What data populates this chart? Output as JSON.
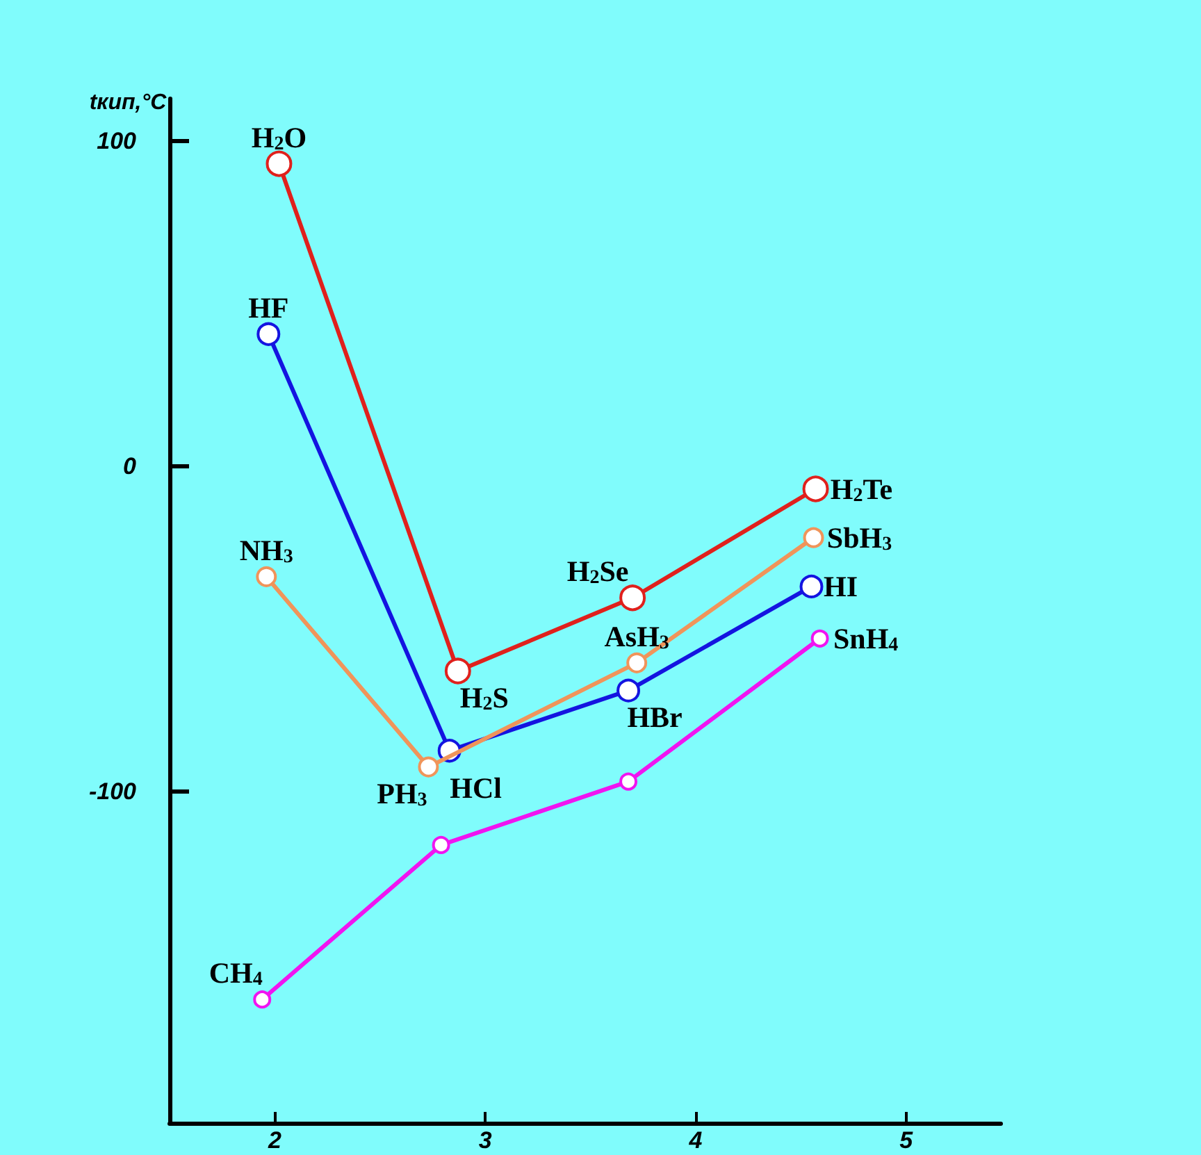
{
  "chart_data": {
    "type": "line",
    "ylabel": "tкип,°C",
    "xlim": [
      1.5,
      5.45
    ],
    "ylim": [
      -202,
      113
    ],
    "xticks": [
      2,
      3,
      4,
      5
    ],
    "yticks": [
      -100,
      0,
      100
    ],
    "grid": false,
    "marker": "circle",
    "line_style": "solid",
    "series": [
      {
        "color": "#e0201c",
        "x": [
          2.02,
          2.87,
          3.7,
          4.57
        ],
        "values": [
          93,
          -63,
          -40.5,
          -7
        ]
      },
      {
        "color": "#1414e0",
        "x": [
          1.97,
          2.83,
          3.68,
          4.55
        ],
        "values": [
          40.6,
          -87.5,
          -69,
          -37
        ]
      },
      {
        "color": "#f0945a",
        "x": [
          1.96,
          2.73,
          3.72,
          4.56
        ],
        "values": [
          -34,
          -92.5,
          -60.5,
          -22
        ]
      },
      {
        "color": "#f014f0",
        "x": [
          1.94,
          2.79,
          3.68,
          4.59
        ],
        "values": [
          -164,
          -116.5,
          -97,
          -53
        ]
      }
    ],
    "annotations": [
      {
        "text": "H$_{2}$O",
        "x": 2.02,
        "y": 93
      },
      {
        "text": "HF",
        "x": 1.97,
        "y": 40.6
      },
      {
        "text": "NH$_{3}$",
        "x": 1.96,
        "y": -34
      },
      {
        "text": "CH$_{4}$",
        "x": 1.94,
        "y": -164
      },
      {
        "text": "H$_{2}$S",
        "x": 2.87,
        "y": -63
      },
      {
        "text": "H$_{2}$Se",
        "x": 3.7,
        "y": -40.5
      },
      {
        "text": "H$_{2}$Te",
        "x": 4.57,
        "y": -7
      },
      {
        "text": "AsH$_{3}$",
        "x": 3.72,
        "y": -60.5
      },
      {
        "text": "HCl",
        "x": 2.83,
        "y": -87.5
      },
      {
        "text": "HBr",
        "x": 3.68,
        "y": -69
      },
      {
        "text": "PH$_{3}$",
        "x": 2.73,
        "y": -92.5
      },
      {
        "text": "SbH$_{3}$",
        "x": 4.56,
        "y": -22
      },
      {
        "text": "HI",
        "x": 4.55,
        "y": -37
      },
      {
        "text": "SnH$_{4}$",
        "x": 4.59,
        "y": -53
      }
    ]
  }
}
